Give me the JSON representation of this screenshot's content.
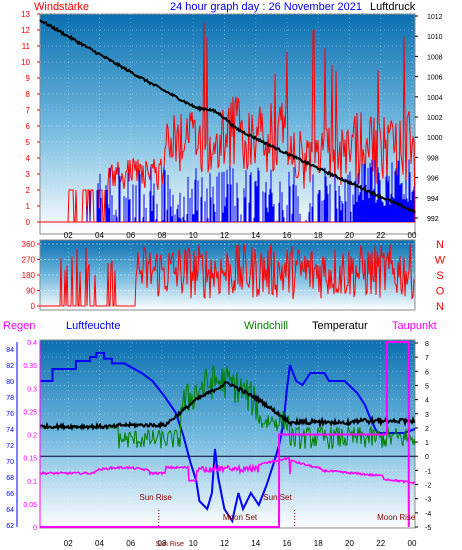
{
  "header": {
    "left_title": "Windstärke",
    "center_title": "24 hour graph day : 26 November 2021",
    "right_title": "Luftdruck"
  },
  "wind_panel": {
    "y_left_ticks": [
      "13",
      "12",
      "11",
      "10",
      "9",
      "8",
      "7",
      "6",
      "5",
      "4",
      "3",
      "2",
      "1",
      "0"
    ],
    "y_right_ticks": [
      "1012",
      "1010",
      "1008",
      "1006",
      "1004",
      "1002",
      "1000",
      "998",
      "996",
      "994",
      "992"
    ],
    "x_ticks": [
      "02",
      "04",
      "06",
      "08",
      "10",
      "12",
      "14",
      "16",
      "18",
      "20",
      "22",
      "00"
    ]
  },
  "direction_panel": {
    "y_ticks": [
      "360",
      "270",
      "180",
      "90",
      "0"
    ],
    "compass": [
      "N",
      "W",
      "S",
      "O",
      "N"
    ]
  },
  "bottom_panel": {
    "labels": {
      "rain": "Regen",
      "humidity": "Luftfeuchte",
      "windchill": "Windchill",
      "temperature": "Temperatur",
      "dewpoint": "Taupunkt"
    },
    "rain_ticks": [
      "0.4",
      "0.35",
      "0.3",
      "0.25",
      "0.2",
      "0.15",
      "0.1",
      "0.05",
      "0"
    ],
    "humidity_ticks": [
      "84",
      "82",
      "80",
      "78",
      "76",
      "74",
      "72",
      "70",
      "68",
      "66",
      "64",
      "62"
    ],
    "temp_ticks": [
      "8",
      "7",
      "6",
      "5",
      "4",
      "3",
      "2",
      "1",
      "0",
      "-1",
      "-2",
      "-3",
      "-4",
      "-5"
    ],
    "x_ticks": [
      "02",
      "04",
      "06",
      "08",
      "10",
      "12",
      "14",
      "16",
      "18",
      "20",
      "22",
      "00"
    ],
    "annotations": {
      "sun_rise": "Sun Rise",
      "moon_set": "Moon Set",
      "sun_set": "Sun Set",
      "moon_rise": "Moon Rise",
      "sun_rise_small": "Sun Rise"
    }
  },
  "colors": {
    "title": "#ff0000",
    "header": "#0000ff",
    "wind": "#ff0000",
    "gust": "#0000ff",
    "pressure": "#000000",
    "rain": "#ff00ff",
    "humidity": "#0000ff",
    "windchill": "#008000",
    "temperature": "#000000",
    "dewpoint": "#ff00ff",
    "annotation": "#8b0000"
  }
}
